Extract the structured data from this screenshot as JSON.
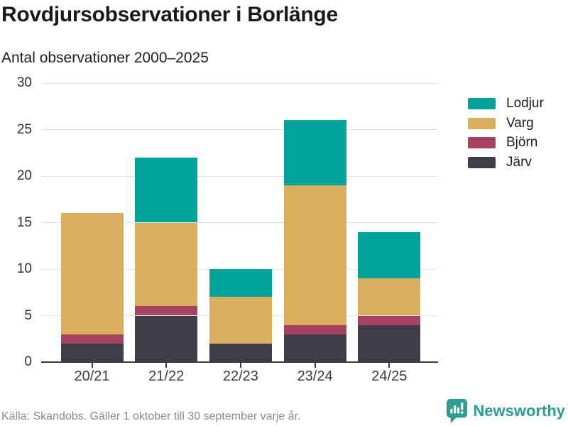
{
  "header": {
    "title": "Rovdjursobservationer i Borlänge",
    "subtitle": "Antal observationer 2000–2025"
  },
  "footer": {
    "source": "Källa: Skandobs. Gäller 1 oktober till 30 september varje år.",
    "brand": "Newsworthy",
    "brand_icon": "newsworthy-chart-bubble-icon"
  },
  "colors": {
    "lodjur": "#00a49a",
    "varg": "#d9ae5c",
    "bjorn": "#a54360",
    "jarv": "#403d4b",
    "gridline": "#e2e2e2",
    "axis": "#3b3b42",
    "brand_teal": "#2d9c92",
    "source_text": "#8b8b8b"
  },
  "chart_data": {
    "type": "bar",
    "stacked": true,
    "title": "Rovdjursobservationer i Borlänge",
    "subtitle": "Antal observationer 2000–2025",
    "categories": [
      "20/21",
      "21/22",
      "22/23",
      "23/24",
      "24/25"
    ],
    "series": [
      {
        "name": "Lodjur",
        "color": "#00a49a",
        "values": [
          0,
          7,
          3,
          7,
          5
        ]
      },
      {
        "name": "Varg",
        "color": "#d9ae5c",
        "values": [
          13,
          9,
          5,
          15,
          4
        ]
      },
      {
        "name": "Björn",
        "color": "#a54360",
        "values": [
          1,
          1,
          0,
          1,
          1
        ]
      },
      {
        "name": "Järv",
        "color": "#403d4b",
        "values": [
          2,
          5,
          2,
          3,
          4
        ]
      }
    ],
    "stack_bottom_to_top": [
      "Järv",
      "Björn",
      "Varg",
      "Lodjur"
    ],
    "totals": [
      16,
      22,
      10,
      26,
      14
    ],
    "xlabel": "",
    "ylabel": "",
    "ylim": [
      0,
      30
    ],
    "yticks": [
      0,
      5,
      10,
      15,
      20,
      25,
      30
    ],
    "grid": true,
    "legend_position": "right"
  }
}
